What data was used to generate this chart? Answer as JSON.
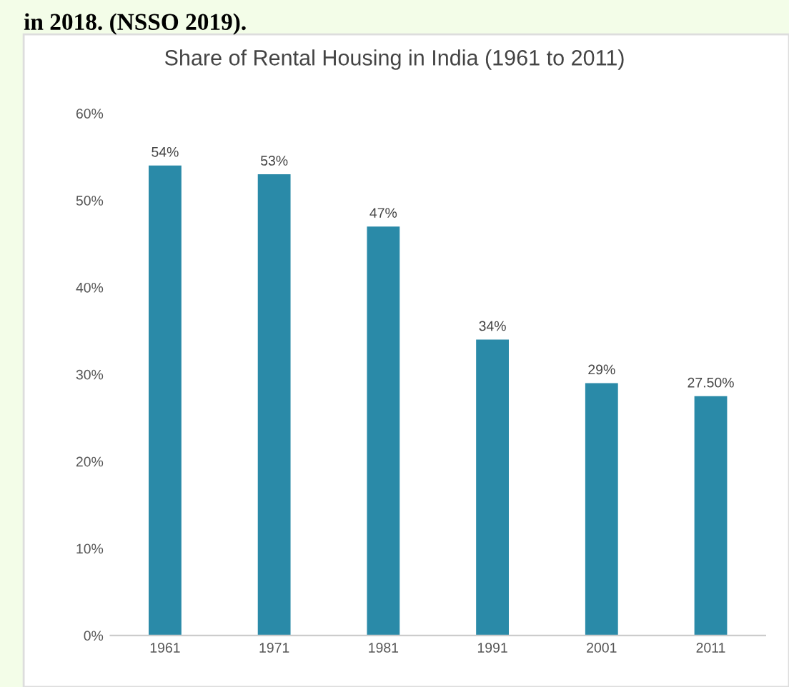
{
  "chart_data": {
    "type": "bar",
    "title": "Share of Rental Housing in India (1961 to 2011)",
    "annotations": [
      "in 2018. (NSSO 2019)."
    ],
    "categories": [
      "1961",
      "1971",
      "1981",
      "1991",
      "2001",
      "2011"
    ],
    "values": [
      54,
      53,
      47,
      34,
      29,
      27.5
    ],
    "value_labels": [
      "54%",
      "53%",
      "47%",
      "34%",
      "29%",
      "27.50%"
    ],
    "color": "#2a8aa8",
    "ylim": [
      0,
      60
    ],
    "yticks": [
      {
        "value": 0,
        "label": "0%"
      },
      {
        "value": 10,
        "label": "10%"
      },
      {
        "value": 20,
        "label": "20%"
      },
      {
        "value": 30,
        "label": "30%"
      },
      {
        "value": 40,
        "label": "40%"
      },
      {
        "value": 50,
        "label": "50%"
      },
      {
        "value": 60,
        "label": "60%"
      }
    ],
    "grid": false,
    "legend": false
  }
}
